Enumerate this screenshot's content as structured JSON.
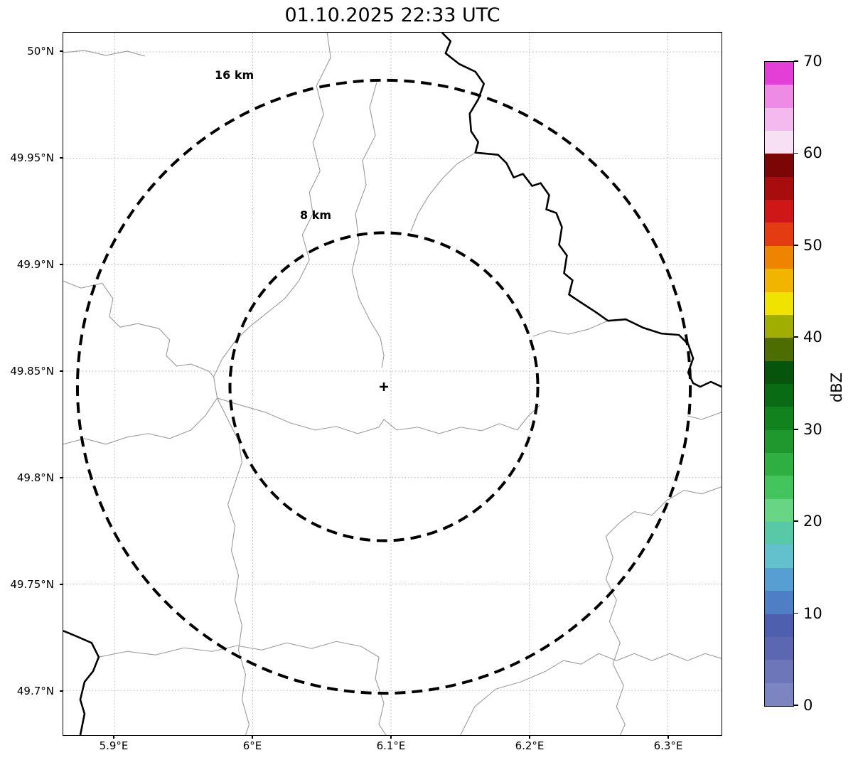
{
  "title": "01.10.2025 22:33 UTC",
  "map": {
    "range_ring_outer_label": "16 km",
    "range_ring_inner_label": "8 km",
    "center_marker": "+",
    "y_ticks": [
      "50°N",
      "49.95°N",
      "49.9°N",
      "49.85°N",
      "49.8°N",
      "49.75°N",
      "49.7°N"
    ],
    "x_ticks": [
      "5.9°E",
      "6°E",
      "6.1°E",
      "6.2°E",
      "6.3°E"
    ]
  },
  "colorbar": {
    "label": "dBZ",
    "min": 0,
    "max": 70,
    "ticks": [
      {
        "value": 0,
        "label": "0"
      },
      {
        "value": 10,
        "label": "10"
      },
      {
        "value": 20,
        "label": "20"
      },
      {
        "value": 30,
        "label": "30"
      },
      {
        "value": 40,
        "label": "40"
      },
      {
        "value": 50,
        "label": "50"
      },
      {
        "value": 60,
        "label": "60"
      },
      {
        "value": 70,
        "label": "70"
      }
    ],
    "band_size_dbz": 2.5,
    "colors_bottom_to_top": [
      "#7d85c1",
      "#6c76b9",
      "#5b67b1",
      "#4e5fae",
      "#4e7fc4",
      "#579fd3",
      "#63c0cd",
      "#57c9a7",
      "#67d584",
      "#44c45c",
      "#2fae41",
      "#1f982e",
      "#12821f",
      "#0a6b15",
      "#07550d",
      "#4d6d00",
      "#9fae00",
      "#f0e300",
      "#f1b500",
      "#ee8400",
      "#e33b12",
      "#cf1717",
      "#a80d0d",
      "#7c0505",
      "#f8e0f4",
      "#f4b9ee",
      "#ee8ce5",
      "#e33fd6"
    ]
  },
  "chart_data": {
    "type": "map",
    "title": "01.10.2025 22:33 UTC",
    "description": "Weather radar reflectivity map with range rings; no radar echoes visible",
    "x_axis": {
      "label": "",
      "ticks": [
        "5.9°E",
        "6°E",
        "6.1°E",
        "6.2°E",
        "6.3°E"
      ]
    },
    "y_axis": {
      "label": "",
      "ticks": [
        "50°N",
        "49.95°N",
        "49.9°N",
        "49.85°N",
        "49.8°N",
        "49.75°N",
        "49.7°N"
      ]
    },
    "range_rings_km": [
      8,
      16
    ],
    "colorbar": {
      "label": "dBZ",
      "range": [
        0,
        70
      ],
      "tick_values": [
        0,
        10,
        20,
        30,
        40,
        50,
        60,
        70
      ]
    },
    "grid": true,
    "legend_position": "right-colorbar"
  }
}
